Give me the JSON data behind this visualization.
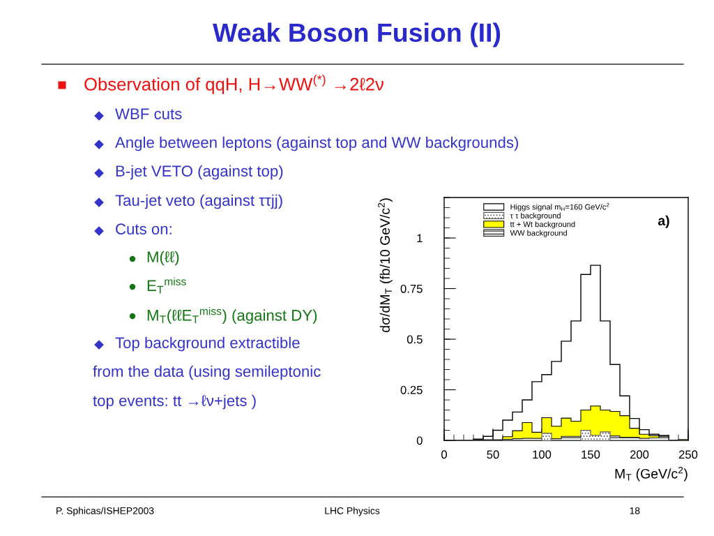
{
  "chart_data": {
    "type": "histogram",
    "title": "Weak Boson Fusion (II)",
    "xlabel": "M$_{T}$ (GeV/c$^{2}$)",
    "ylabel": "dσ/dM$_{T}$ (fb/10 GeV/c$^{2}$)",
    "bins": [
      0,
      10,
      20,
      30,
      40,
      50,
      60,
      70,
      80,
      90,
      100,
      110,
      120,
      130,
      140,
      150,
      160,
      170,
      180,
      190,
      200,
      210,
      220,
      230,
      240,
      250
    ],
    "series": [
      {
        "name": "Higgs signal m$_{H}$=160 GeV/c$^{2}$",
        "color": "#000000",
        "values": [
          0,
          0,
          0,
          0.006,
          0.02,
          0.05,
          0.1,
          0.14,
          0.2,
          0.29,
          0.325,
          0.39,
          0.49,
          0.59,
          0.82,
          0.865,
          0.59,
          0.375,
          0.22,
          0.108,
          0.053,
          0.03,
          0.024,
          0,
          0
        ]
      },
      {
        "name": "τ τ background",
        "color": "#555555",
        "values": [
          0,
          0,
          0,
          0,
          0,
          0,
          0,
          0,
          0,
          0,
          0.035,
          0,
          0,
          0,
          0.05,
          0.025,
          0.042,
          0,
          0,
          0,
          0,
          0,
          0,
          0,
          0
        ]
      },
      {
        "name": "tt + Wt background",
        "color": "#ffff00",
        "values": [
          0,
          0,
          0,
          0,
          0.003,
          0.003,
          0.018,
          0.048,
          0.088,
          0.04,
          0.112,
          0.07,
          0.11,
          0.095,
          0.15,
          0.17,
          0.15,
          0.143,
          0.122,
          0.06,
          0.03,
          0.023,
          0.02,
          0,
          0.004
        ]
      },
      {
        "name": "WW background",
        "color": "#222222",
        "values": [
          0,
          0,
          0,
          0,
          0,
          0,
          0.005,
          0.008,
          0.01,
          0.01,
          0.012,
          0.008,
          0.02,
          0.02,
          0.025,
          0.02,
          0.025,
          0.022,
          0.015,
          0.015,
          0.01,
          0.012,
          0.02,
          0,
          0
        ]
      }
    ],
    "xlim": [
      0,
      250
    ],
    "xticks": [
      0,
      50,
      100,
      150,
      200,
      250
    ],
    "ylim": [
      0,
      1.2
    ],
    "yticks": [
      0,
      0.25,
      0.5,
      0.75,
      1
    ],
    "grid": false,
    "legend": "top",
    "annotations": [
      "Observation of qqH, H→WW$^{(*)}$ →2ℓ2ν",
      "WBF cuts",
      "Angle between leptons (against top and WW backgrounds)",
      "B-jet VETO (against top)",
      "Tau-jet veto (against ττjj)",
      "Cuts on:",
      "M(ℓℓ)",
      "E$_{T}$$^{miss}$",
      "M$_{T}$(ℓℓE$_{T}$$^{miss}$) (against DY)",
      "Top background extractible",
      "from the data (using semileptonic",
      "top events: tt →ℓν+jets )",
      "a)",
      "P. Sphicas/ISHEP2003",
      "LHC Physics",
      "18"
    ]
  }
}
